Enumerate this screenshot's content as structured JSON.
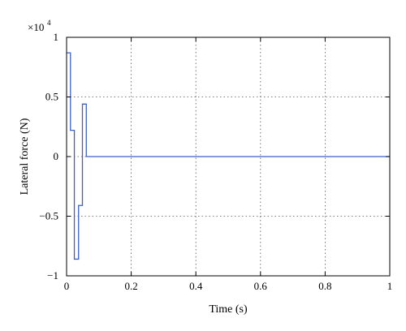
{
  "chart_data": {
    "type": "line",
    "xlabel": "Time (s)",
    "ylabel": "Lateral force (N)",
    "y_multiplier_label": "×10",
    "y_multiplier_exponent": "4",
    "xlim": [
      0,
      1
    ],
    "ylim": [
      -1,
      1
    ],
    "grid": true,
    "x_ticks": [
      0,
      0.2,
      0.4,
      0.6,
      0.8,
      1
    ],
    "x_tick_labels": [
      "0",
      "0.2",
      "0.4",
      "0.6",
      "0.8",
      "1"
    ],
    "y_ticks": [
      -1,
      -0.5,
      0,
      0.5,
      1
    ],
    "y_tick_labels": [
      "−1",
      "−0.5",
      "0",
      "0.5",
      "1"
    ],
    "series": [
      {
        "color": "#3d5fc9",
        "points": [
          [
            0,
            0.87
          ],
          [
            0.012,
            0.87
          ],
          [
            0.012,
            0.22
          ],
          [
            0.024,
            0.22
          ],
          [
            0.024,
            -0.86
          ],
          [
            0.037,
            -0.86
          ],
          [
            0.037,
            -0.41
          ],
          [
            0.049,
            -0.41
          ],
          [
            0.049,
            0.44
          ],
          [
            0.061,
            0.44
          ],
          [
            0.061,
            0.0
          ],
          [
            1.0,
            0.0
          ]
        ]
      }
    ]
  }
}
